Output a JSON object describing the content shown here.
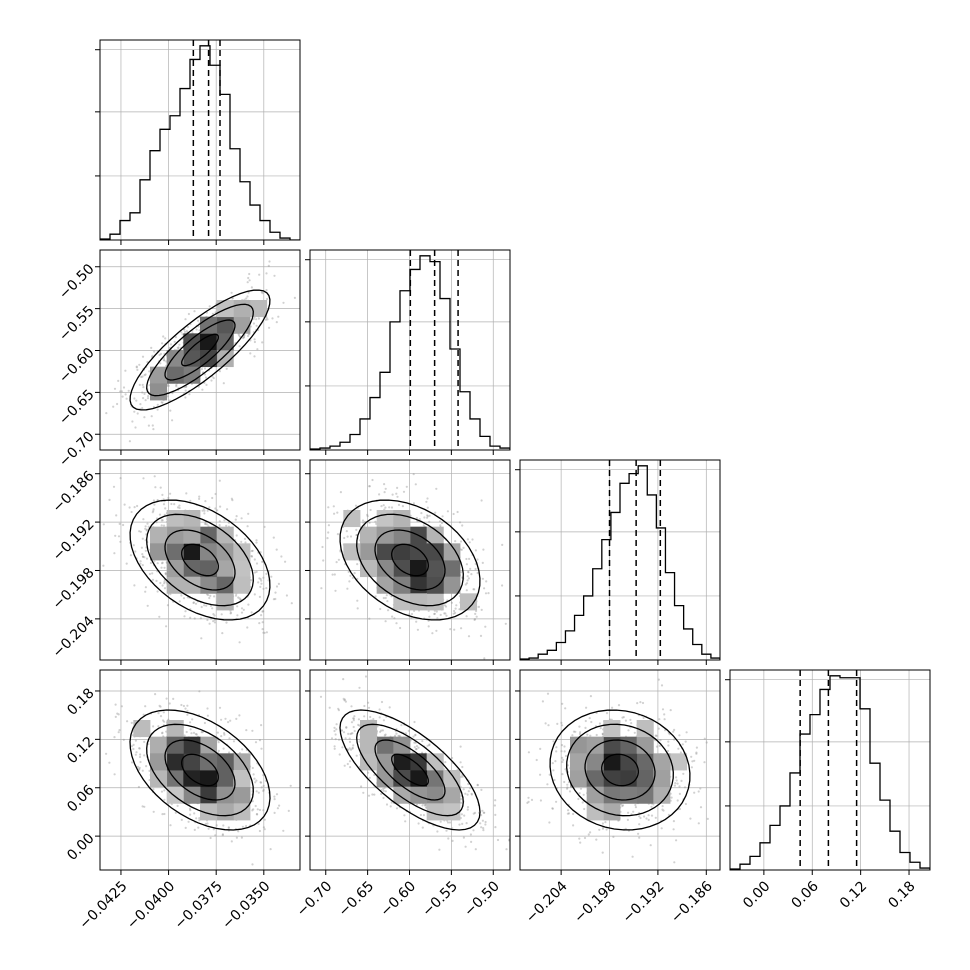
{
  "chart_data": {
    "type": "corner",
    "grid": true,
    "parameters": [
      {
        "range": [
          -0.0436,
          -0.0331
        ],
        "ticks": [
          -0.0425,
          -0.04,
          -0.0375,
          -0.035
        ],
        "tick_labels": [
          "−0.0425",
          "−0.0400",
          "−0.0375",
          "−0.0350"
        ],
        "quantiles": [
          -0.0387,
          -0.0379,
          -0.0373
        ]
      },
      {
        "range": [
          -0.7188,
          -0.48
        ],
        "ticks": [
          -0.7,
          -0.65,
          -0.6,
          -0.55,
          -0.5
        ],
        "tick_labels": [
          "−0.70",
          "−0.65",
          "−0.60",
          "−0.55",
          "−0.50"
        ],
        "quantiles": [
          -0.599,
          -0.57,
          -0.542
        ]
      },
      {
        "range": [
          -0.2091,
          -0.1843
        ],
        "ticks": [
          -0.204,
          -0.198,
          -0.192,
          -0.186
        ],
        "tick_labels": [
          "−0.204",
          "−0.198",
          "−0.192",
          "−0.186"
        ],
        "quantiles": [
          -0.198,
          -0.1947,
          -0.1917
        ]
      },
      {
        "range": [
          -0.042,
          0.206
        ],
        "ticks": [
          0.0,
          0.06,
          0.12,
          0.18
        ],
        "tick_labels": [
          "0.00",
          "0.06",
          "0.12",
          "0.18"
        ],
        "quantiles": [
          0.045,
          0.08,
          0.115
        ]
      }
    ],
    "diagonal_histograms": [
      [
        0.005,
        0.03,
        0.1,
        0.14,
        0.31,
        0.46,
        0.57,
        0.64,
        0.78,
        0.93,
        1.0,
        0.9,
        0.75,
        0.47,
        0.3,
        0.18,
        0.1,
        0.04,
        0.01,
        0.0
      ],
      [
        0.005,
        0.01,
        0.02,
        0.04,
        0.08,
        0.16,
        0.27,
        0.4,
        0.66,
        0.82,
        0.93,
        1.0,
        0.97,
        0.78,
        0.52,
        0.3,
        0.16,
        0.07,
        0.02,
        0.01
      ],
      [
        0.005,
        0.01,
        0.03,
        0.05,
        0.09,
        0.15,
        0.23,
        0.33,
        0.47,
        0.62,
        0.76,
        0.91,
        0.96,
        1.0,
        0.85,
        0.68,
        0.45,
        0.28,
        0.16,
        0.08,
        0.03,
        0.01
      ],
      [
        0.005,
        0.03,
        0.07,
        0.14,
        0.23,
        0.33,
        0.5,
        0.7,
        0.8,
        0.93,
        1.0,
        0.99,
        0.99,
        0.83,
        0.55,
        0.36,
        0.2,
        0.09,
        0.04,
        0.01
      ]
    ],
    "pair_correlations": {
      "1-0": 0.82,
      "2-0": -0.42,
      "2-1": -0.35,
      "3-0": -0.45,
      "3-1": -0.7,
      "3-2": -0.1
    }
  }
}
